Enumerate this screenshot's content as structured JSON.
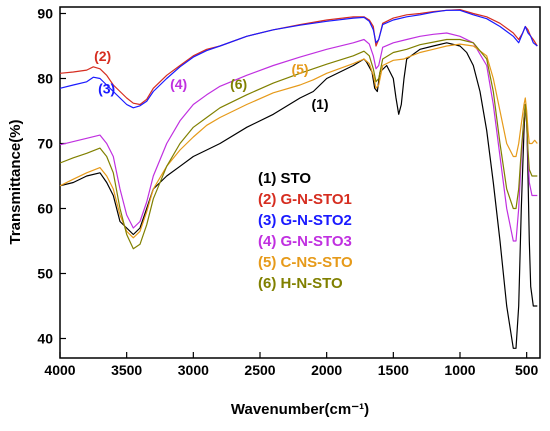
{
  "chart_data": {
    "type": "line",
    "xlabel": "Wavenumber(cm⁻¹)",
    "ylabel": "Transmittance(%)",
    "xlim": [
      4000,
      400
    ],
    "ylim": [
      37,
      91
    ],
    "x_reversed": true,
    "xticks": [
      4000,
      3500,
      3000,
      2500,
      2000,
      1500,
      1000,
      500
    ],
    "yticks": [
      40,
      50,
      60,
      70,
      80,
      90
    ],
    "legend_placement": "center-right",
    "series": [
      {
        "name": "(1) STO",
        "color": "#000000",
        "points": [
          [
            4000,
            63.5
          ],
          [
            3900,
            64
          ],
          [
            3800,
            65
          ],
          [
            3700,
            65.5
          ],
          [
            3650,
            64
          ],
          [
            3600,
            62
          ],
          [
            3550,
            58
          ],
          [
            3500,
            57
          ],
          [
            3450,
            56
          ],
          [
            3400,
            57
          ],
          [
            3350,
            60
          ],
          [
            3300,
            63
          ],
          [
            3200,
            65
          ],
          [
            3100,
            66.5
          ],
          [
            3000,
            68
          ],
          [
            2900,
            69
          ],
          [
            2800,
            70
          ],
          [
            2600,
            72.5
          ],
          [
            2400,
            74.5
          ],
          [
            2200,
            77
          ],
          [
            2100,
            78
          ],
          [
            2000,
            80
          ],
          [
            1800,
            82
          ],
          [
            1720,
            83
          ],
          [
            1700,
            82.5
          ],
          [
            1660,
            81
          ],
          [
            1640,
            78.5
          ],
          [
            1620,
            78
          ],
          [
            1600,
            81
          ],
          [
            1550,
            82
          ],
          [
            1500,
            80
          ],
          [
            1480,
            77
          ],
          [
            1460,
            74.5
          ],
          [
            1440,
            76
          ],
          [
            1420,
            80
          ],
          [
            1400,
            83
          ],
          [
            1300,
            84.5
          ],
          [
            1200,
            85
          ],
          [
            1100,
            85.5
          ],
          [
            1000,
            85
          ],
          [
            950,
            84
          ],
          [
            900,
            82
          ],
          [
            850,
            78
          ],
          [
            800,
            72
          ],
          [
            750,
            64
          ],
          [
            700,
            55
          ],
          [
            650,
            45
          ],
          [
            600,
            38.5
          ],
          [
            580,
            38.5
          ],
          [
            560,
            45
          ],
          [
            540,
            60
          ],
          [
            520,
            72
          ],
          [
            510,
            76
          ],
          [
            500,
            74
          ],
          [
            490,
            65
          ],
          [
            480,
            55
          ],
          [
            470,
            48
          ],
          [
            450,
            45
          ],
          [
            420,
            45
          ]
        ]
      },
      {
        "name": "(2) G-N-STO1",
        "color": "#d62d20",
        "points": [
          [
            4000,
            80.8
          ],
          [
            3900,
            81
          ],
          [
            3800,
            81.3
          ],
          [
            3750,
            81.8
          ],
          [
            3700,
            81.5
          ],
          [
            3650,
            80.5
          ],
          [
            3600,
            79
          ],
          [
            3550,
            78
          ],
          [
            3500,
            77
          ],
          [
            3450,
            76.2
          ],
          [
            3400,
            76
          ],
          [
            3350,
            76.8
          ],
          [
            3300,
            78.5
          ],
          [
            3200,
            80.5
          ],
          [
            3100,
            82
          ],
          [
            3000,
            83.5
          ],
          [
            2900,
            84.5
          ],
          [
            2800,
            85
          ],
          [
            2600,
            86.5
          ],
          [
            2400,
            87.5
          ],
          [
            2200,
            88.3
          ],
          [
            2000,
            89
          ],
          [
            1800,
            89.5
          ],
          [
            1720,
            89.5
          ],
          [
            1680,
            89
          ],
          [
            1650,
            88
          ],
          [
            1630,
            85
          ],
          [
            1610,
            86
          ],
          [
            1580,
            88.5
          ],
          [
            1500,
            89.3
          ],
          [
            1400,
            89.8
          ],
          [
            1300,
            90
          ],
          [
            1200,
            90.3
          ],
          [
            1100,
            90.5
          ],
          [
            1000,
            90.6
          ],
          [
            900,
            90
          ],
          [
            800,
            89.5
          ],
          [
            700,
            88.5
          ],
          [
            600,
            87
          ],
          [
            560,
            86
          ],
          [
            530,
            87
          ],
          [
            510,
            88
          ],
          [
            490,
            87.5
          ],
          [
            470,
            86.5
          ],
          [
            450,
            86
          ],
          [
            420,
            85
          ]
        ]
      },
      {
        "name": "(3) G-N-STO2",
        "color": "#1a1aff",
        "points": [
          [
            4000,
            78.5
          ],
          [
            3900,
            79
          ],
          [
            3800,
            79.5
          ],
          [
            3750,
            80.2
          ],
          [
            3700,
            80
          ],
          [
            3650,
            79
          ],
          [
            3600,
            78
          ],
          [
            3550,
            77
          ],
          [
            3500,
            76
          ],
          [
            3450,
            75.5
          ],
          [
            3400,
            75.8
          ],
          [
            3350,
            76.5
          ],
          [
            3300,
            78
          ],
          [
            3200,
            80
          ],
          [
            3100,
            81.8
          ],
          [
            3000,
            83.3
          ],
          [
            2900,
            84.3
          ],
          [
            2800,
            85
          ],
          [
            2600,
            86.5
          ],
          [
            2400,
            87.5
          ],
          [
            2200,
            88.2
          ],
          [
            2000,
            88.8
          ],
          [
            1800,
            89.3
          ],
          [
            1720,
            89.4
          ],
          [
            1680,
            88.8
          ],
          [
            1650,
            87.5
          ],
          [
            1630,
            85.5
          ],
          [
            1610,
            86
          ],
          [
            1580,
            88.3
          ],
          [
            1500,
            89
          ],
          [
            1400,
            89.5
          ],
          [
            1300,
            89.8
          ],
          [
            1200,
            90.2
          ],
          [
            1100,
            90.5
          ],
          [
            1000,
            90.5
          ],
          [
            900,
            89.8
          ],
          [
            800,
            89.2
          ],
          [
            700,
            88
          ],
          [
            600,
            86.5
          ],
          [
            560,
            85.5
          ],
          [
            530,
            87
          ],
          [
            510,
            88
          ],
          [
            490,
            87
          ],
          [
            470,
            86.5
          ],
          [
            450,
            85.5
          ],
          [
            420,
            85
          ]
        ]
      },
      {
        "name": "(4) G-N-STO3",
        "color": "#c030e0",
        "points": [
          [
            4000,
            69.8
          ],
          [
            3900,
            70.3
          ],
          [
            3800,
            70.8
          ],
          [
            3700,
            71.3
          ],
          [
            3650,
            70
          ],
          [
            3600,
            68
          ],
          [
            3550,
            63
          ],
          [
            3500,
            59
          ],
          [
            3450,
            57
          ],
          [
            3400,
            58
          ],
          [
            3350,
            61
          ],
          [
            3300,
            65
          ],
          [
            3200,
            70
          ],
          [
            3100,
            73.5
          ],
          [
            3000,
            76
          ],
          [
            2900,
            77.5
          ],
          [
            2800,
            78.8
          ],
          [
            2600,
            80.5
          ],
          [
            2400,
            82
          ],
          [
            2200,
            83.3
          ],
          [
            2000,
            84.5
          ],
          [
            1800,
            85.5
          ],
          [
            1720,
            86
          ],
          [
            1680,
            85.3
          ],
          [
            1650,
            83.5
          ],
          [
            1630,
            81.5
          ],
          [
            1610,
            82
          ],
          [
            1580,
            84.8
          ],
          [
            1500,
            85.5
          ],
          [
            1400,
            86
          ],
          [
            1300,
            86.5
          ],
          [
            1200,
            86.8
          ],
          [
            1100,
            87
          ],
          [
            1000,
            86.5
          ],
          [
            900,
            85.5
          ],
          [
            800,
            82
          ],
          [
            750,
            76
          ],
          [
            700,
            68
          ],
          [
            650,
            60
          ],
          [
            600,
            55
          ],
          [
            580,
            55
          ],
          [
            560,
            60
          ],
          [
            540,
            68
          ],
          [
            520,
            74
          ],
          [
            510,
            76
          ],
          [
            500,
            73
          ],
          [
            490,
            68
          ],
          [
            480,
            64
          ],
          [
            460,
            62
          ],
          [
            440,
            62
          ],
          [
            420,
            62
          ]
        ]
      },
      {
        "name": "(5) C-NS-STO",
        "color": "#e69a1a",
        "points": [
          [
            4000,
            63.5
          ],
          [
            3900,
            64.5
          ],
          [
            3800,
            65.5
          ],
          [
            3700,
            66.3
          ],
          [
            3650,
            65
          ],
          [
            3600,
            63
          ],
          [
            3550,
            59
          ],
          [
            3500,
            56.5
          ],
          [
            3450,
            55.5
          ],
          [
            3400,
            56.5
          ],
          [
            3350,
            59.5
          ],
          [
            3300,
            63
          ],
          [
            3200,
            66.5
          ],
          [
            3100,
            69
          ],
          [
            3000,
            71
          ],
          [
            2900,
            72.8
          ],
          [
            2800,
            74
          ],
          [
            2600,
            76
          ],
          [
            2400,
            77.8
          ],
          [
            2200,
            79
          ],
          [
            2100,
            79.8
          ],
          [
            2000,
            80.8
          ],
          [
            1800,
            82.3
          ],
          [
            1720,
            83
          ],
          [
            1680,
            82.3
          ],
          [
            1650,
            80.5
          ],
          [
            1630,
            78.5
          ],
          [
            1610,
            79
          ],
          [
            1580,
            82
          ],
          [
            1500,
            82.8
          ],
          [
            1420,
            83
          ],
          [
            1400,
            83.2
          ],
          [
            1300,
            84
          ],
          [
            1200,
            84.5
          ],
          [
            1100,
            85
          ],
          [
            1000,
            85.3
          ],
          [
            900,
            85
          ],
          [
            800,
            83.5
          ],
          [
            750,
            80
          ],
          [
            700,
            75
          ],
          [
            650,
            70
          ],
          [
            600,
            68
          ],
          [
            580,
            68
          ],
          [
            560,
            70
          ],
          [
            540,
            73
          ],
          [
            520,
            76
          ],
          [
            510,
            77
          ],
          [
            500,
            75
          ],
          [
            490,
            72
          ],
          [
            480,
            70
          ],
          [
            460,
            70
          ],
          [
            440,
            70.5
          ],
          [
            420,
            70
          ]
        ]
      },
      {
        "name": "(6) H-N-STO",
        "color": "#808000",
        "points": [
          [
            4000,
            67
          ],
          [
            3900,
            67.8
          ],
          [
            3800,
            68.5
          ],
          [
            3700,
            69.3
          ],
          [
            3650,
            68
          ],
          [
            3600,
            65.5
          ],
          [
            3550,
            60
          ],
          [
            3500,
            56
          ],
          [
            3450,
            53.8
          ],
          [
            3400,
            54.5
          ],
          [
            3350,
            57.5
          ],
          [
            3300,
            61.5
          ],
          [
            3200,
            66.5
          ],
          [
            3100,
            70
          ],
          [
            3000,
            72.5
          ],
          [
            2900,
            74
          ],
          [
            2800,
            75.5
          ],
          [
            2600,
            77.5
          ],
          [
            2400,
            79.3
          ],
          [
            2200,
            80.8
          ],
          [
            2000,
            82.2
          ],
          [
            1800,
            83.5
          ],
          [
            1720,
            84.2
          ],
          [
            1680,
            83.5
          ],
          [
            1650,
            81.5
          ],
          [
            1630,
            79.5
          ],
          [
            1610,
            80
          ],
          [
            1580,
            83
          ],
          [
            1500,
            84
          ],
          [
            1400,
            84.5
          ],
          [
            1300,
            85.2
          ],
          [
            1200,
            85.6
          ],
          [
            1100,
            86
          ],
          [
            1000,
            86
          ],
          [
            900,
            85.5
          ],
          [
            800,
            83
          ],
          [
            750,
            78
          ],
          [
            700,
            70
          ],
          [
            650,
            63
          ],
          [
            600,
            60
          ],
          [
            580,
            60
          ],
          [
            560,
            63
          ],
          [
            540,
            69
          ],
          [
            520,
            74
          ],
          [
            510,
            76
          ],
          [
            500,
            73
          ],
          [
            490,
            69
          ],
          [
            480,
            66
          ],
          [
            460,
            65
          ],
          [
            440,
            65
          ],
          [
            420,
            65
          ]
        ]
      }
    ],
    "annotations": [
      {
        "label": "(2)",
        "series": 1,
        "x": 3680,
        "y": 82.7
      },
      {
        "label": "(3)",
        "series": 2,
        "x": 3650,
        "y": 77.7
      },
      {
        "label": "(4)",
        "series": 3,
        "x": 3110,
        "y": 78.4
      },
      {
        "label": "(6)",
        "series": 5,
        "x": 2660,
        "y": 78.4
      },
      {
        "label": "(5)",
        "series": 4,
        "x": 2200,
        "y": 80.7
      },
      {
        "label": "(1)",
        "series": 0,
        "x": 2050,
        "y": 75.3
      }
    ]
  }
}
